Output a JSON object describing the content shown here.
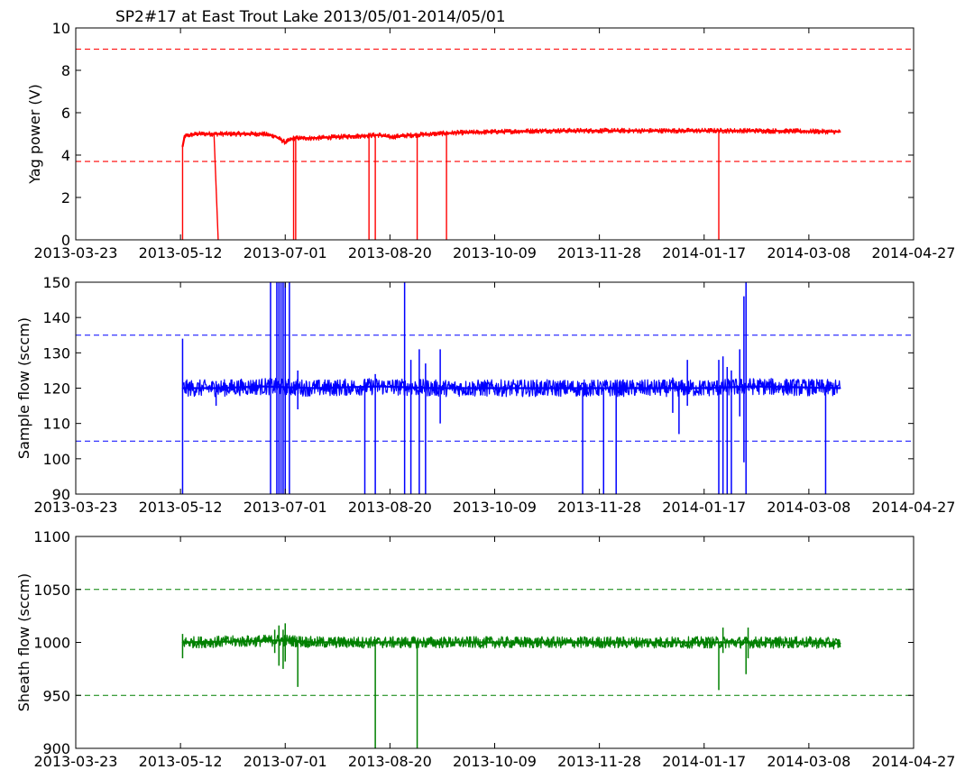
{
  "chart_data": [
    {
      "type": "line",
      "title": "SP2#17 at East Trout Lake 2013/05/01-2014/05/01",
      "xlabel": "",
      "ylabel": "Yag power (V)",
      "ylim": [
        0,
        10
      ],
      "yticks": [
        0,
        2,
        4,
        6,
        8,
        10
      ],
      "xticks": [
        "2013-03-23",
        "2013-05-12",
        "2013-07-01",
        "2013-08-20",
        "2013-10-09",
        "2013-11-28",
        "2014-01-17",
        "2014-03-08",
        "2014-04-27"
      ],
      "xlim": [
        "2013-03-23",
        "2014-04-27"
      ],
      "grid": false,
      "color": "#ff0000",
      "thresholds": [
        9.0,
        3.7
      ],
      "data_range": [
        "2013-05-13",
        "2014-03-23"
      ],
      "series": [
        {
          "name": "",
          "x": [
            "2013-05-13",
            "2013-05-14",
            "2013-05-20",
            "2013-05-30",
            "2013-06-10",
            "2013-06-20",
            "2013-06-26",
            "2013-07-01",
            "2013-07-05",
            "2013-07-15",
            "2013-07-25",
            "2013-08-05",
            "2013-08-15",
            "2013-08-20",
            "2013-08-25",
            "2013-09-01",
            "2013-09-10",
            "2013-09-20",
            "2013-10-09",
            "2013-11-01",
            "2013-11-28",
            "2013-12-20",
            "2014-01-17",
            "2014-02-10",
            "2014-03-08",
            "2014-03-23"
          ],
          "y": [
            4.4,
            4.9,
            5.0,
            5.0,
            5.0,
            5.0,
            4.9,
            4.6,
            4.8,
            4.8,
            4.85,
            4.9,
            4.95,
            4.85,
            4.9,
            4.95,
            5.0,
            5.05,
            5.1,
            5.15,
            5.15,
            5.15,
            5.15,
            5.15,
            5.12,
            5.1
          ]
        }
      ],
      "dropouts": [
        {
          "x": "2013-05-13",
          "y": 0
        },
        {
          "x": "2013-07-05",
          "y": 0
        },
        {
          "x": "2013-07-06",
          "y": 0
        },
        {
          "x": "2013-08-10",
          "y": 0
        },
        {
          "x": "2013-08-13",
          "y": 0
        },
        {
          "x": "2013-09-02",
          "y": 0
        },
        {
          "x": "2013-09-16",
          "y": 0
        },
        {
          "x": "2014-01-24",
          "y": 0
        }
      ],
      "ramps": [
        {
          "x": [
            "2013-05-28",
            "2013-05-30"
          ],
          "y": [
            5.0,
            0
          ]
        }
      ]
    },
    {
      "type": "line",
      "title": "",
      "xlabel": "",
      "ylabel": "Sample flow (sccm)",
      "ylim": [
        90,
        150
      ],
      "yticks": [
        90,
        100,
        110,
        120,
        130,
        140,
        150
      ],
      "xticks": [
        "2013-03-23",
        "2013-05-12",
        "2013-07-01",
        "2013-08-20",
        "2013-10-09",
        "2013-11-28",
        "2014-01-17",
        "2014-03-08",
        "2014-04-27"
      ],
      "xlim": [
        "2013-03-23",
        "2014-04-27"
      ],
      "grid": false,
      "color": "#0000ff",
      "thresholds": [
        135,
        105
      ],
      "data_range": [
        "2013-05-13",
        "2014-03-23"
      ],
      "series": [
        {
          "name": "",
          "x": [
            "2013-05-13",
            "2013-05-30",
            "2013-06-20",
            "2013-07-15",
            "2013-08-15",
            "2013-09-10",
            "2013-10-09",
            "2013-11-28",
            "2014-01-15",
            "2014-02-10",
            "2014-03-23"
          ],
          "y": [
            120,
            120,
            120.5,
            120,
            120.5,
            120,
            120,
            120,
            120,
            120.5,
            120
          ]
        }
      ],
      "spikes": [
        {
          "x": "2013-05-13",
          "y": [
            90,
            134
          ]
        },
        {
          "x": "2013-05-29",
          "y": [
            115,
            122
          ]
        },
        {
          "x": "2013-06-24",
          "y": [
            90,
            150
          ]
        },
        {
          "x": "2013-06-27",
          "y": [
            90,
            150
          ]
        },
        {
          "x": "2013-06-28",
          "y": [
            90,
            150
          ]
        },
        {
          "x": "2013-06-29",
          "y": [
            90,
            150
          ]
        },
        {
          "x": "2013-06-30",
          "y": [
            90,
            150
          ]
        },
        {
          "x": "2013-07-01",
          "y": [
            90,
            150
          ]
        },
        {
          "x": "2013-07-03",
          "y": [
            90,
            150
          ]
        },
        {
          "x": "2013-07-07",
          "y": [
            114,
            125
          ]
        },
        {
          "x": "2013-08-08",
          "y": [
            90,
            121
          ]
        },
        {
          "x": "2013-08-13",
          "y": [
            90,
            124
          ]
        },
        {
          "x": "2013-08-27",
          "y": [
            90,
            150
          ]
        },
        {
          "x": "2013-08-30",
          "y": [
            90,
            128
          ]
        },
        {
          "x": "2013-09-03",
          "y": [
            90,
            131
          ]
        },
        {
          "x": "2013-09-06",
          "y": [
            90,
            127
          ]
        },
        {
          "x": "2013-09-13",
          "y": [
            110,
            131
          ]
        },
        {
          "x": "2013-11-20",
          "y": [
            90,
            120
          ]
        },
        {
          "x": "2013-11-30",
          "y": [
            90,
            120
          ]
        },
        {
          "x": "2013-12-06",
          "y": [
            90,
            120
          ]
        },
        {
          "x": "2014-01-02",
          "y": [
            113,
            123
          ]
        },
        {
          "x": "2014-01-05",
          "y": [
            107,
            120
          ]
        },
        {
          "x": "2014-01-09",
          "y": [
            115,
            128
          ]
        },
        {
          "x": "2014-01-24",
          "y": [
            90,
            128
          ]
        },
        {
          "x": "2014-01-26",
          "y": [
            90,
            129
          ]
        },
        {
          "x": "2014-01-28",
          "y": [
            90,
            126
          ]
        },
        {
          "x": "2014-01-30",
          "y": [
            90,
            125
          ]
        },
        {
          "x": "2014-02-03",
          "y": [
            112,
            131
          ]
        },
        {
          "x": "2014-02-05",
          "y": [
            99,
            146
          ]
        },
        {
          "x": "2014-02-06",
          "y": [
            90,
            150
          ]
        },
        {
          "x": "2014-03-16",
          "y": [
            90,
            120
          ]
        }
      ]
    },
    {
      "type": "line",
      "title": "",
      "xlabel": "",
      "ylabel": "Sheath flow (sccm)",
      "ylim": [
        900,
        1100
      ],
      "yticks": [
        900,
        950,
        1000,
        1050,
        1100
      ],
      "xticks": [
        "2013-03-23",
        "2013-05-12",
        "2013-07-01",
        "2013-08-20",
        "2013-10-09",
        "2013-11-28",
        "2014-01-17",
        "2014-03-08",
        "2014-04-27"
      ],
      "xlim": [
        "2013-03-23",
        "2014-04-27"
      ],
      "grid": false,
      "color": "#008000",
      "thresholds": [
        1050,
        950
      ],
      "data_range": [
        "2013-05-13",
        "2014-03-23"
      ],
      "series": [
        {
          "name": "",
          "x": [
            "2013-05-13",
            "2013-06-10",
            "2013-07-01",
            "2013-07-15",
            "2013-08-20",
            "2013-10-09",
            "2013-11-28",
            "2014-01-17",
            "2014-03-08",
            "2014-03-23"
          ],
          "y": [
            1000,
            1001,
            1002,
            1000,
            1000,
            1000,
            1000,
            1000,
            1000,
            999
          ]
        }
      ],
      "spikes": [
        {
          "x": "2013-05-13",
          "y": [
            985,
            1008
          ]
        },
        {
          "x": "2013-06-26",
          "y": [
            990,
            1012
          ]
        },
        {
          "x": "2013-06-28",
          "y": [
            978,
            1016
          ]
        },
        {
          "x": "2013-06-30",
          "y": [
            975,
            1012
          ]
        },
        {
          "x": "2013-07-01",
          "y": [
            982,
            1018
          ]
        },
        {
          "x": "2013-07-07",
          "y": [
            958,
            1000
          ]
        },
        {
          "x": "2013-08-13",
          "y": [
            900,
            1000
          ]
        },
        {
          "x": "2013-09-02",
          "y": [
            900,
            1000
          ]
        },
        {
          "x": "2014-01-24",
          "y": [
            955,
            1000
          ]
        },
        {
          "x": "2014-01-26",
          "y": [
            990,
            1014
          ]
        },
        {
          "x": "2014-02-06",
          "y": [
            970,
            1000
          ]
        },
        {
          "x": "2014-02-07",
          "y": [
            985,
            1014
          ]
        }
      ]
    }
  ]
}
